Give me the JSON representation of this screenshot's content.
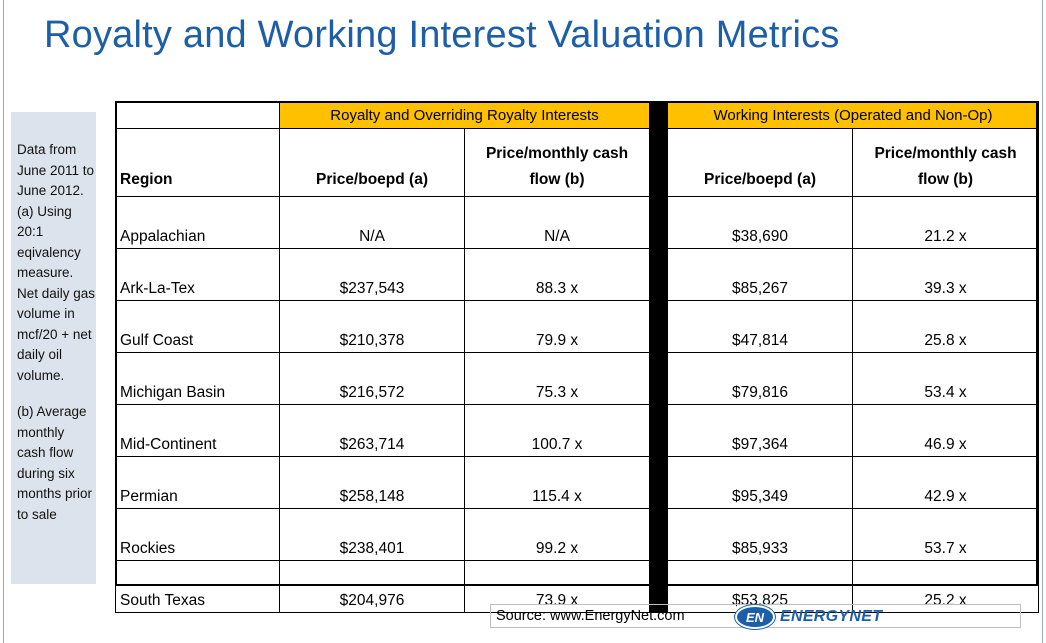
{
  "title": "Royalty and Working Interest Valuation Metrics",
  "sidenote": {
    "para1": "Data from June 2011 to June 2012. (a) Using 20:1 eqivalency measure. Net daily gas volume in mcf/20 + net daily oil volume.",
    "para2": "(b) Average monthly cash flow during six months prior to sale"
  },
  "table": {
    "group_royalty": "Royalty and Overriding Royalty Interests",
    "group_working": "Working Interests (Operated and Non-Op)",
    "col_region": "Region",
    "col_price_boepd": "Price/boepd (a)",
    "col_price_cf": "Price/monthly cash flow (b)",
    "rows": [
      {
        "region": "Appalachian",
        "r_price": "N/A",
        "r_cf": "N/A",
        "w_price": "$38,690",
        "w_cf": "21.2 x"
      },
      {
        "region": "Ark-La-Tex",
        "r_price": "$237,543",
        "r_cf": "88.3 x",
        "w_price": "$85,267",
        "w_cf": "39.3 x"
      },
      {
        "region": "Gulf Coast",
        "r_price": "$210,378",
        "r_cf": "79.9 x",
        "w_price": "$47,814",
        "w_cf": "25.8 x"
      },
      {
        "region": "Michigan Basin",
        "r_price": "$216,572",
        "r_cf": "75.3 x",
        "w_price": "$79,816",
        "w_cf": "53.4 x"
      },
      {
        "region": "Mid-Continent",
        "r_price": "$263,714",
        "r_cf": "100.7 x",
        "w_price": "$97,364",
        "w_cf": "46.9 x"
      },
      {
        "region": "Permian",
        "r_price": "$258,148",
        "r_cf": "115.4 x",
        "w_price": "$95,349",
        "w_cf": "42.9 x"
      },
      {
        "region": "Rockies",
        "r_price": "$238,401",
        "r_cf": "99.2 x",
        "w_price": "$85,933",
        "w_cf": "53.7 x"
      },
      {
        "region": "South Texas",
        "r_price": "$204,976",
        "r_cf": "73.9 x",
        "w_price": "$53,825",
        "w_cf": "25.2 x"
      }
    ]
  },
  "source": "Source: www.EnergyNet.com",
  "logo": {
    "badge": "EN",
    "name": "ENERGYNET"
  },
  "colors": {
    "title": "#1d5fa7",
    "header_fill": "#ffc000",
    "sidenote_bg": "#dde3ec"
  }
}
